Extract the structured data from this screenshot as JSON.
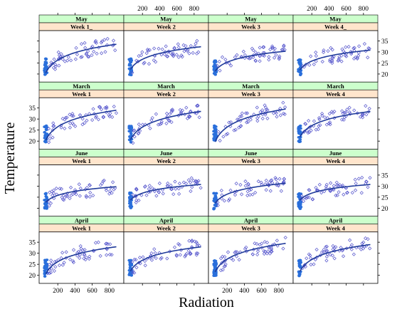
{
  "chart_data": {
    "type": "scatter",
    "title": "",
    "xlabel": "Radiation",
    "ylabel": "Temperature",
    "xlim": [
      0,
      950
    ],
    "ylim": [
      17,
      39
    ],
    "x_ticks": [
      200,
      400,
      600,
      800
    ],
    "y_ticks": [
      20,
      25,
      30,
      35
    ],
    "layout": {
      "columns": 4,
      "rows": 4,
      "grid": false
    },
    "panels": [
      {
        "month": "May",
        "week": "Week 1_",
        "fit": {
          "at_100": 23,
          "at_800": 33
        }
      },
      {
        "month": "May",
        "week": "Week 2",
        "fit": {
          "at_100": 24,
          "at_800": 32
        }
      },
      {
        "month": "May",
        "week": "Week 3",
        "fit": {
          "at_100": 23,
          "at_800": 30
        }
      },
      {
        "month": "May",
        "week": "Week 4_",
        "fit": {
          "at_100": 23.5,
          "at_800": 30.5
        }
      },
      {
        "month": "March",
        "week": "Week 1",
        "fit": {
          "at_100": 23,
          "at_800": 33.5
        }
      },
      {
        "month": "March",
        "week": "Week 2",
        "fit": {
          "at_100": 23,
          "at_800": 33
        }
      },
      {
        "month": "March",
        "week": "Week 3",
        "fit": {
          "at_100": 22.5,
          "at_800": 34
        }
      },
      {
        "month": "March",
        "week": "Week 4",
        "fit": {
          "at_100": 24,
          "at_800": 33
        }
      },
      {
        "month": "June",
        "week": "Week 1",
        "fit": {
          "at_100": 24,
          "at_800": 29.5
        }
      },
      {
        "month": "June",
        "week": "Week 2",
        "fit": {
          "at_100": 25,
          "at_800": 30.5
        }
      },
      {
        "month": "June",
        "week": "Week 3",
        "fit": {
          "at_100": 24,
          "at_800": 31
        }
      },
      {
        "month": "June",
        "week": "Week 4",
        "fit": {
          "at_100": 25,
          "at_800": 30.5
        }
      },
      {
        "month": "April",
        "week": "Week 1",
        "fit": {
          "at_100": 23,
          "at_800": 32.5
        }
      },
      {
        "month": "April",
        "week": "Week 2",
        "fit": {
          "at_100": 24,
          "at_800": 32.5
        }
      },
      {
        "month": "April",
        "week": "Week 3",
        "fit": {
          "at_100": 24,
          "at_800": 34
        }
      },
      {
        "month": "April",
        "week": "Week 4",
        "fit": {
          "at_100": 24,
          "at_800": 33.5
        }
      }
    ],
    "colors": {
      "month_strip": "#ccffcc",
      "week_strip": "#ffe5cc",
      "points": "#5555cc",
      "low_radiation_cluster": "#2a6fdb",
      "fit_line": "#1f3a9a"
    }
  }
}
